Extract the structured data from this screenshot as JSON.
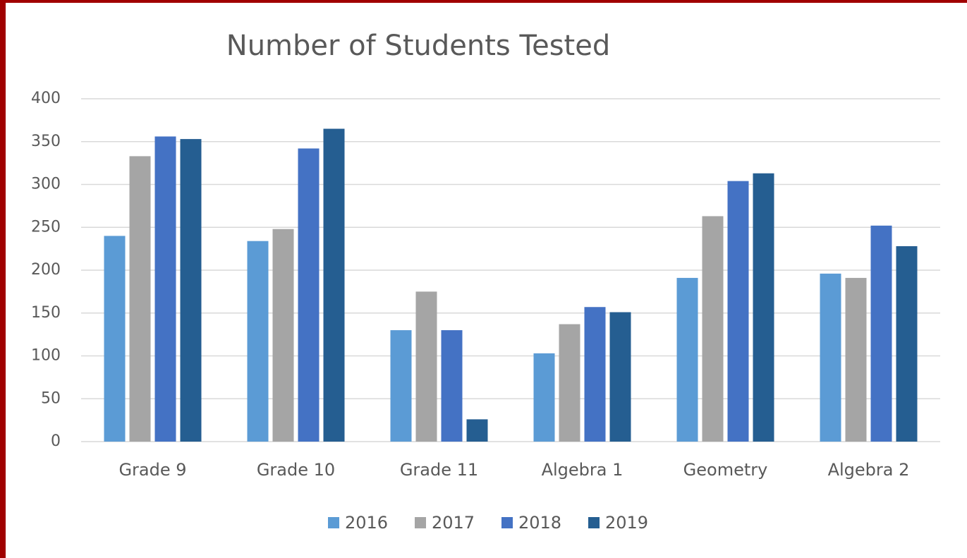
{
  "chart_data": {
    "type": "bar",
    "title": "Number of Students Tested",
    "categories": [
      "Grade 9",
      "Grade 10",
      "Grade 11",
      "Algebra 1",
      "Geometry",
      "Algebra 2"
    ],
    "series": [
      {
        "name": "2016",
        "color": "#5b9bd5",
        "values": [
          240,
          234,
          130,
          103,
          191,
          196
        ]
      },
      {
        "name": "2017",
        "color": "#a5a5a5",
        "values": [
          333,
          248,
          175,
          137,
          263,
          191
        ]
      },
      {
        "name": "2018",
        "color": "#4472c4",
        "values": [
          356,
          342,
          130,
          157,
          304,
          252
        ]
      },
      {
        "name": "2019",
        "color": "#255e91",
        "values": [
          353,
          365,
          26,
          151,
          313,
          228
        ]
      }
    ],
    "ylim": [
      0,
      400
    ],
    "yticks": [
      0,
      50,
      100,
      150,
      200,
      250,
      300,
      350,
      400
    ],
    "grid": true,
    "legend": "bottom"
  }
}
